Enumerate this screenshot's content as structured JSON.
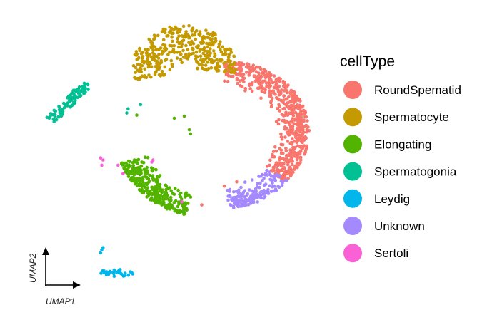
{
  "chart_data": {
    "type": "scatter",
    "xlabel": "UMAP1",
    "ylabel": "UMAP2",
    "grid": false,
    "legend": {
      "title": "cellType",
      "placement": "right",
      "entries": [
        {
          "name": "RoundSpematid",
          "color": "#F8766D"
        },
        {
          "name": "Spermatocyte",
          "color": "#C49A00"
        },
        {
          "name": "Elongating",
          "color": "#53B400"
        },
        {
          "name": "Spermatogonia",
          "color": "#00C094"
        },
        {
          "name": "Leydig",
          "color": "#00B6EB"
        },
        {
          "name": "Unknown",
          "color": "#A58AFF"
        },
        {
          "name": "Sertoli",
          "color": "#FB61D7"
        }
      ]
    },
    "series": [
      {
        "name": "RoundSpematid",
        "color": "#F8766D",
        "shape": "arc",
        "cx": 0.4,
        "cy": 0.2,
        "r_inner": 2.1,
        "r_outer": 3.4,
        "a0": 90,
        "a1": -45,
        "n": 620
      },
      {
        "name": "Spermatocyte",
        "color": "#C49A00",
        "shape": "arc",
        "cx": -1.2,
        "cy": 3.2,
        "r_inner": 0.3,
        "r_outer": 2.1,
        "a0": 200,
        "a1": -5,
        "n": 380
      },
      {
        "name": "Elongating",
        "color": "#53B400",
        "shape": "arc",
        "cx": -0.2,
        "cy": -0.2,
        "r_inner": 2.5,
        "r_outer": 3.7,
        "a0": 197,
        "a1": 255,
        "n": 320
      },
      {
        "name": "Unknown",
        "color": "#A58AFF",
        "shape": "arc",
        "cx": 0.3,
        "cy": -0.3,
        "r_inner": 2.1,
        "r_outer": 3.2,
        "a0": 275,
        "a1": 325,
        "n": 170
      },
      {
        "name": "Spermatogonia",
        "color": "#00C094",
        "shape": "band",
        "x0": -6.6,
        "y0": 0.75,
        "x1": -5.05,
        "y1": 2.5,
        "width": 0.45,
        "n": 90
      },
      {
        "name": "Leydig",
        "color": "#00B6EB",
        "shape": "blob",
        "cx": -3.9,
        "cy": -6.55,
        "rx": 0.7,
        "ry": 0.2,
        "n": 38
      },
      {
        "name": "Sertoli",
        "color": "#FB61D7",
        "shape": "points",
        "points": [
          [
            -4.55,
            -1.05
          ],
          [
            -4.45,
            -1.15
          ],
          [
            -4.5,
            -1.4
          ],
          [
            -3.85,
            -1.4
          ],
          [
            -3.65,
            -1.8
          ],
          [
            -2.45,
            -1.15
          ],
          [
            -2.5,
            -1.25
          ],
          [
            -1.3,
            -3.15
          ]
        ]
      }
    ],
    "extra_points": [
      {
        "series": "Leydig",
        "points": [
          [
            -4.5,
            -5.45
          ],
          [
            -4.45,
            -5.35
          ],
          [
            -4.55,
            -5.6
          ]
        ]
      },
      {
        "series": "Spermatogonia",
        "points": [
          [
            -3.5,
            1.1
          ],
          [
            -3.45,
            1.3
          ],
          [
            -2.95,
            1.5
          ]
        ]
      },
      {
        "series": "Elongating",
        "points": [
          [
            -1.6,
            0.85
          ],
          [
            -1.2,
            0.95
          ],
          [
            -1.0,
            0.3
          ],
          [
            -0.95,
            0.1
          ],
          [
            -3.1,
            1.0
          ]
        ]
      },
      {
        "series": "RoundSpematid",
        "points": [
          [
            -0.5,
            -3.3
          ],
          [
            0.4,
            -2.4
          ],
          [
            0.9,
            -2.2
          ]
        ]
      }
    ],
    "xlim": [
      -8,
      4
    ],
    "ylim": [
      -8.5,
      6
    ]
  }
}
